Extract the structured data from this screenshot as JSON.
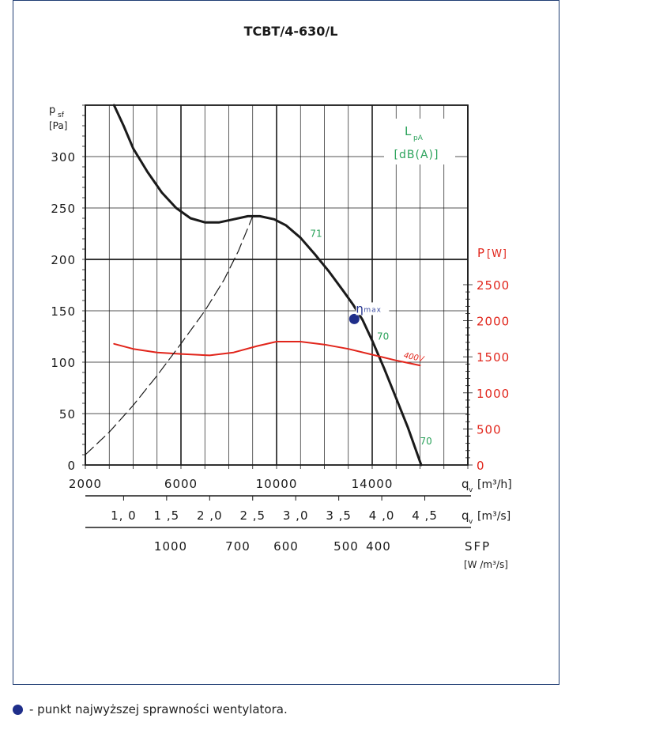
{
  "chart_data": {
    "type": "line",
    "title": "TCBT/4-630/L",
    "y_left": {
      "label": "p",
      "label_sub": "sf",
      "unit": "[Pa]",
      "ticks": [
        0,
        50,
        100,
        150,
        200,
        250,
        300
      ],
      "ylim": [
        0,
        350
      ]
    },
    "y_right": {
      "label": "P",
      "unit": "[W]",
      "ticks": [
        0,
        500,
        1000,
        1500,
        2000,
        2500
      ],
      "ylim": [
        0,
        2500
      ]
    },
    "x_axis_flow_m3h": {
      "label": "q",
      "label_sub": "v",
      "unit": "[m³/h]",
      "ticks": [
        2000,
        6000,
        10000,
        14000
      ],
      "xlim": [
        2000,
        18000
      ]
    },
    "x_axis_flow_m3s": {
      "label": "q",
      "label_sub": "v",
      "unit": "[m³/s]",
      "tick_labels": [
        "1, 0",
        "1 ,5",
        "2 ,0",
        "2 ,5",
        "3 ,0",
        "3 ,5",
        "4 ,0",
        "4 ,5"
      ],
      "tick_values": [
        1.0,
        1.5,
        2.0,
        2.5,
        3.0,
        3.5,
        4.0,
        4.5
      ]
    },
    "x_axis_sfp": {
      "label": "SFP",
      "unit": "[W /m³/s]",
      "tick_labels": [
        "1000",
        "700",
        "600",
        "500",
        "400"
      ],
      "tick_flow_m3h": [
        1000,
        700,
        600,
        500,
        400
      ]
    },
    "lpa_label": {
      "main": "L",
      "sub": "pA",
      "unit": "[dB(A)]"
    },
    "series": [
      {
        "axis": "left",
        "color": "#1a1a1a",
        "points": [
          [
            3200,
            350
          ],
          [
            3600,
            330
          ],
          [
            4000,
            308
          ],
          [
            4600,
            285
          ],
          [
            5200,
            265
          ],
          [
            5800,
            250
          ],
          [
            6400,
            240
          ],
          [
            7000,
            236
          ],
          [
            7600,
            236
          ],
          [
            8200,
            239
          ],
          [
            8800,
            242
          ],
          [
            9300,
            242
          ],
          [
            9900,
            239
          ],
          [
            10400,
            233
          ],
          [
            11000,
            221
          ],
          [
            11600,
            205
          ],
          [
            12200,
            188
          ],
          [
            12800,
            169
          ],
          [
            13200,
            156
          ],
          [
            13600,
            141
          ],
          [
            14000,
            121
          ],
          [
            14500,
            94
          ],
          [
            15000,
            65
          ],
          [
            15500,
            36
          ],
          [
            16050,
            0
          ]
        ]
      },
      {
        "axis": "right",
        "name": "400V",
        "color": "#e1251b",
        "points": [
          [
            3200,
            1680
          ],
          [
            4000,
            1610
          ],
          [
            5000,
            1560
          ],
          [
            6000,
            1540
          ],
          [
            7200,
            1520
          ],
          [
            8200,
            1560
          ],
          [
            9200,
            1650
          ],
          [
            10000,
            1710
          ],
          [
            11000,
            1710
          ],
          [
            12000,
            1670
          ],
          [
            13000,
            1610
          ],
          [
            14000,
            1530
          ],
          [
            15000,
            1450
          ],
          [
            16000,
            1380
          ]
        ]
      },
      {
        "axis": "left",
        "dashed": true,
        "color": "#1a1a1a",
        "points": [
          [
            2000,
            10
          ],
          [
            3000,
            32
          ],
          [
            4000,
            58
          ],
          [
            5000,
            87
          ],
          [
            6000,
            118
          ],
          [
            7000,
            150
          ],
          [
            7800,
            180
          ],
          [
            8400,
            208
          ],
          [
            9000,
            242
          ]
        ]
      }
    ],
    "annotations": [
      {
        "text": "71",
        "x": 11400,
        "y": 222,
        "color": "#2aa25a"
      },
      {
        "text": "70",
        "x": 14200,
        "y": 122,
        "color": "#2aa25a"
      },
      {
        "text": "70",
        "x": 16000,
        "y": 20,
        "color": "#2aa25a"
      },
      {
        "text": "400V",
        "x": 15300,
        "y": 1490,
        "axis": "right",
        "color": "#e1251b"
      }
    ],
    "eta_max": {
      "symbol": "η",
      "sub": "max",
      "x": 13250,
      "y": 142,
      "color": "#1f2e8a"
    }
  },
  "footer": {
    "text": "- punkt najwyższej sprawności wentylatora."
  }
}
